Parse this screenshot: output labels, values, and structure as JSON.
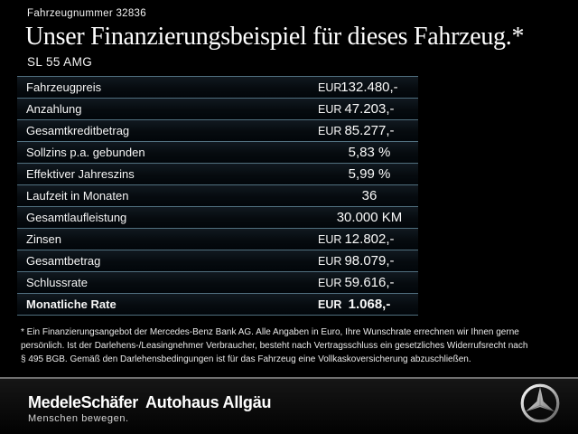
{
  "header": {
    "vehicle_number": "Fahrzeugnummer 32836",
    "title": "Unser Finanzierungsbeispiel für dieses Fahrzeug.*",
    "model": "SL 55 AMG"
  },
  "financing_table": {
    "rows": [
      {
        "label": "Fahrzeugpreis",
        "currency": "EUR",
        "value": "132.480,-",
        "bold": false
      },
      {
        "label": "Anzahlung",
        "currency": "EUR",
        "value": "47.203,-",
        "bold": false
      },
      {
        "label": "Gesamtkreditbetrag",
        "currency": "EUR",
        "value": "85.277,-",
        "bold": false
      },
      {
        "label": "Sollzins p.a. gebunden",
        "currency": "",
        "value": "5,83 %",
        "bold": false
      },
      {
        "label": "Effektiver Jahreszins",
        "currency": "",
        "value": "5,99 %",
        "bold": false
      },
      {
        "label": "Laufzeit in Monaten",
        "currency": "",
        "value": "36",
        "bold": false
      },
      {
        "label": "Gesamtlaufleistung",
        "currency": "",
        "value": "30.000 KM",
        "bold": false
      },
      {
        "label": "Zinsen",
        "currency": "EUR",
        "value": "12.802,-",
        "bold": false
      },
      {
        "label": "Gesamtbetrag",
        "currency": "EUR",
        "value": "98.079,-",
        "bold": false
      },
      {
        "label": "Schlussrate",
        "currency": "EUR",
        "value": "59.616,-",
        "bold": false
      },
      {
        "label": "Monatliche Rate",
        "currency": "EUR",
        "value": "1.068,-",
        "bold": true
      }
    ]
  },
  "footnote": {
    "lines": [
      "* Ein Finanzierungsangebot der Mercedes-Benz Bank AG. Alle Angaben in Euro, Ihre Wunschrate errechnen wir Ihnen gerne",
      "persönlich. Ist der Darlehens-/Leasingnehmer Verbraucher, besteht nach Vertragsschluss ein gesetzliches Widerrufsrecht nach",
      "§ 495 BGB. Gemäß den Darlehensbedingungen ist für das Fahrzeug eine Vollkaskoversicherung abzuschließen."
    ]
  },
  "footer": {
    "dealer_logo": "MedeleSchäfer",
    "dealer_tagline": "Menschen bewegen.",
    "dealer_secondary": "Autohaus Allgäu",
    "brand_icon": "mercedes-star-icon"
  },
  "colors": {
    "background": "#000000",
    "row_separator": "#51707f",
    "footer_line": "#6f6f6f",
    "text": "#ffffff"
  }
}
